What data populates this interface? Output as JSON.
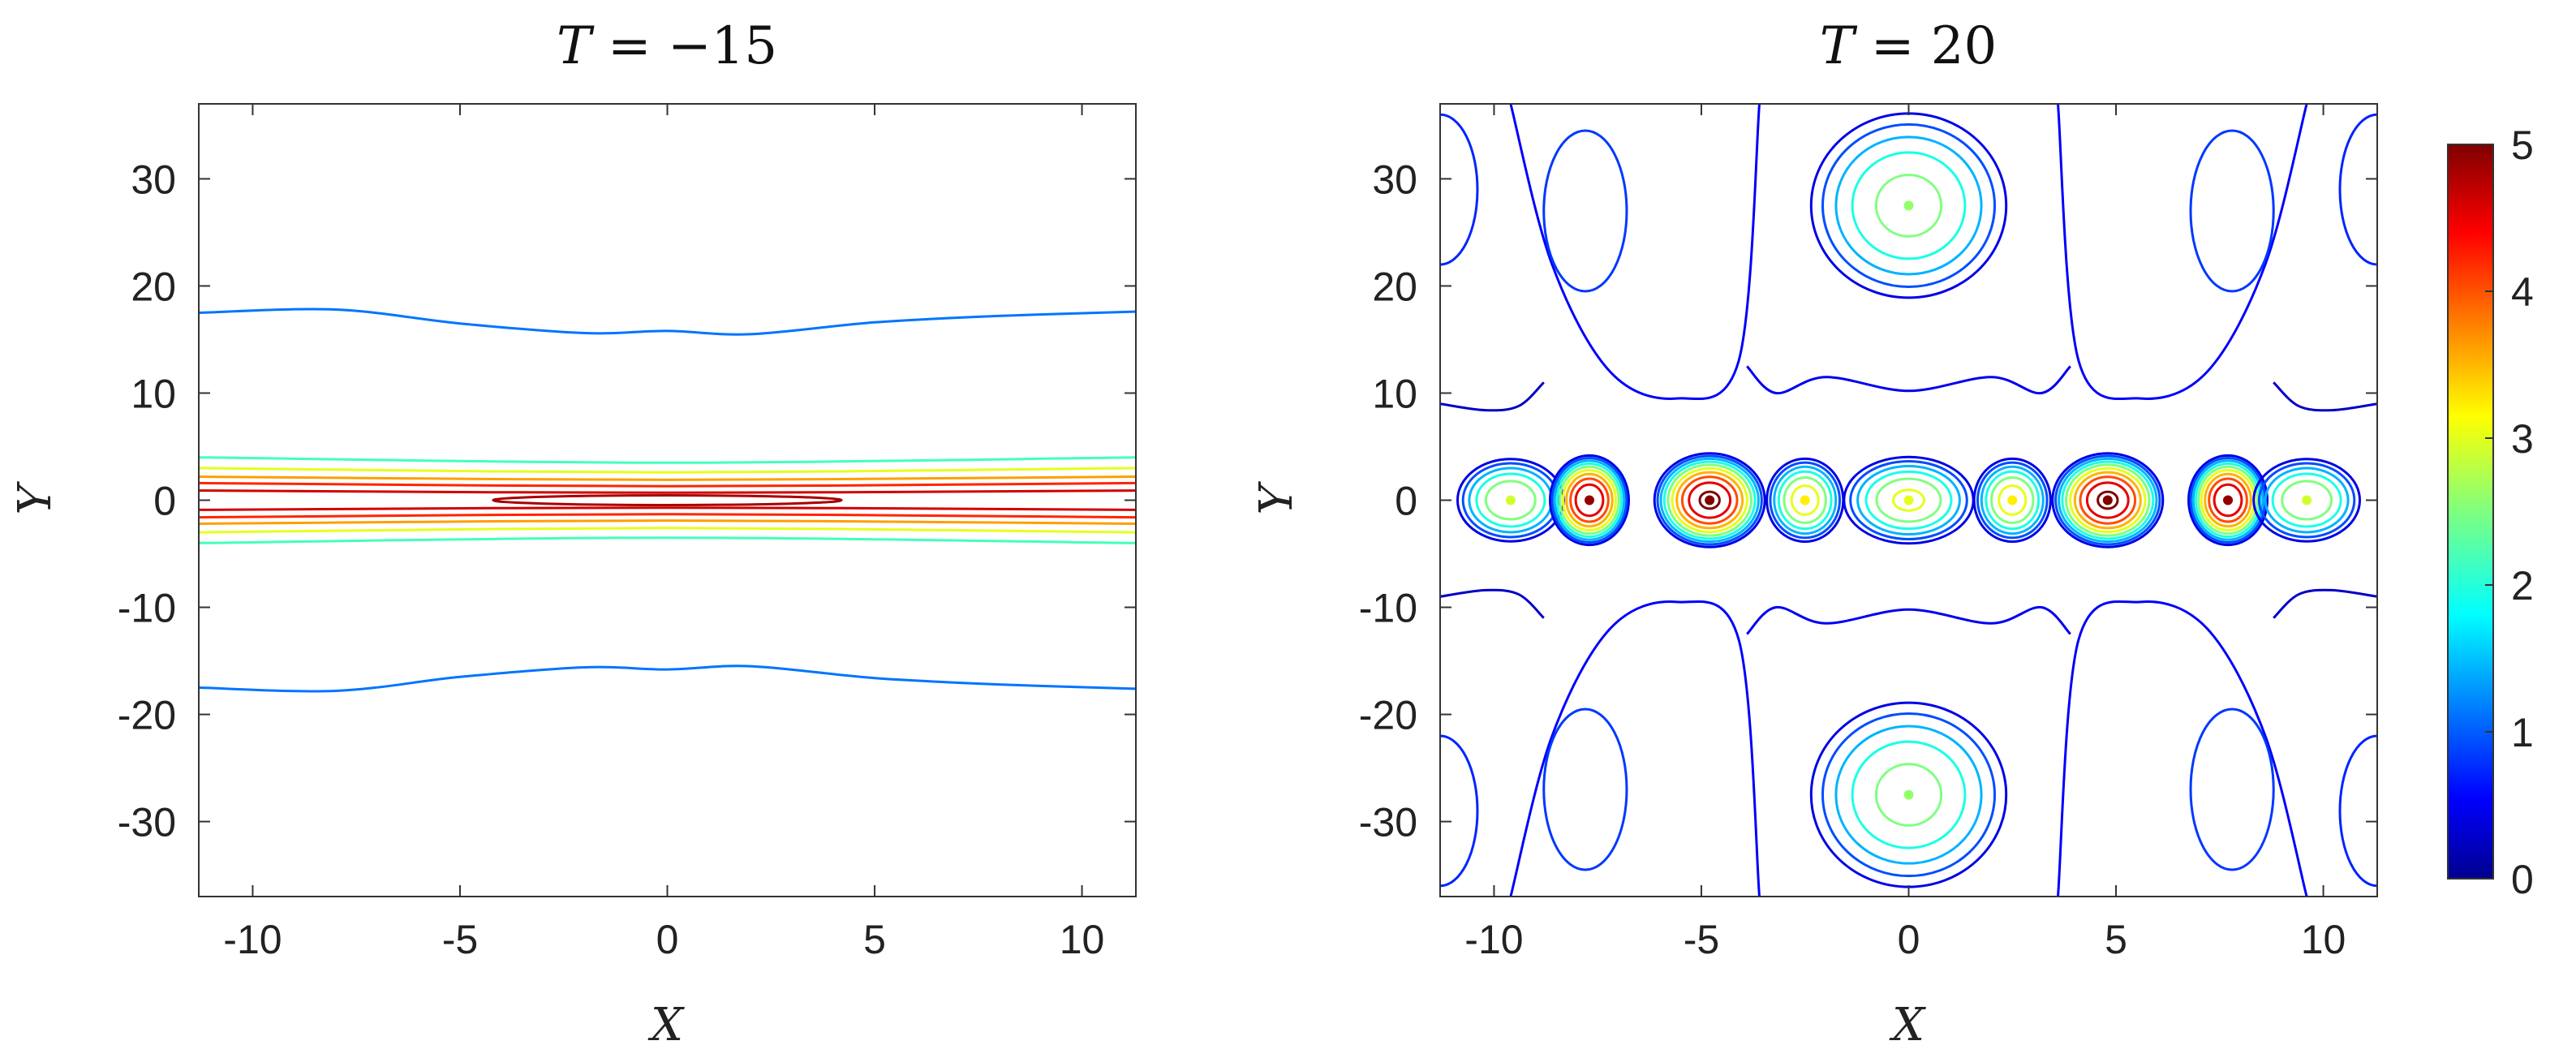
{
  "chart_data": [
    {
      "type": "contour",
      "title": "T = −15",
      "title_parts": {
        "var": "T",
        "rest": " = −15"
      },
      "xlabel": "X",
      "ylabel": "Y",
      "xlim": [
        -11.3,
        11.3
      ],
      "ylim": [
        -37,
        37
      ],
      "xticks": [
        -10,
        -5,
        0,
        5,
        10
      ],
      "xtick_labels": [
        "-10",
        "-5",
        "0",
        "5",
        "10"
      ],
      "yticks": [
        -30,
        -20,
        -10,
        0,
        10,
        20,
        30
      ],
      "ytick_labels": [
        "-30",
        "-20",
        "-10",
        "0",
        "10",
        "20",
        "30"
      ],
      "grid": false,
      "description": "Line soliton along Y=0: nested horizontal contour bands (red core up to ~4.8, fading through orange/yellow/cyan), with faint outer level-1 contours near Y=±16.5",
      "contour_lines": [
        {
          "level": 1.2,
          "x": [
            -11.3,
            -8,
            -5,
            -2,
            0,
            2,
            5,
            8,
            11.3
          ],
          "y": [
            17.5,
            17.8,
            16.5,
            15.6,
            15.8,
            15.5,
            16.6,
            17.2,
            17.6
          ]
        },
        {
          "level": 1.2,
          "x": [
            -11.3,
            -8,
            -5,
            -2,
            0,
            2,
            5,
            8,
            11.3
          ],
          "y": [
            -17.5,
            -17.8,
            -16.5,
            -15.6,
            -15.8,
            -15.5,
            -16.6,
            -17.2,
            -17.6
          ]
        },
        {
          "level": 2.2,
          "x": [
            -11.3,
            0,
            11.3
          ],
          "y": [
            4.0,
            3.5,
            4.0
          ]
        },
        {
          "level": 2.2,
          "x": [
            -11.3,
            0,
            11.3
          ],
          "y": [
            -4.0,
            -3.5,
            -4.0
          ]
        },
        {
          "level": 3.0,
          "x": [
            -11.3,
            0,
            11.3
          ],
          "y": [
            3.0,
            2.6,
            3.0
          ]
        },
        {
          "level": 3.0,
          "x": [
            -11.3,
            0,
            11.3
          ],
          "y": [
            -3.0,
            -2.6,
            -3.0
          ]
        },
        {
          "level": 3.6,
          "x": [
            -11.3,
            0,
            11.3
          ],
          "y": [
            2.2,
            1.9,
            2.2
          ]
        },
        {
          "level": 3.6,
          "x": [
            -11.3,
            0,
            11.3
          ],
          "y": [
            -2.2,
            -1.9,
            -2.2
          ]
        },
        {
          "level": 4.2,
          "x": [
            -11.3,
            0,
            11.3
          ],
          "y": [
            1.6,
            1.3,
            1.6
          ]
        },
        {
          "level": 4.2,
          "x": [
            -11.3,
            0,
            11.3
          ],
          "y": [
            -1.6,
            -1.3,
            -1.6
          ]
        },
        {
          "level": 4.6,
          "x": [
            -11.3,
            0,
            11.3
          ],
          "y": [
            0.9,
            0.7,
            0.9
          ]
        },
        {
          "level": 4.6,
          "x": [
            -11.3,
            0,
            11.3
          ],
          "y": [
            -0.9,
            -0.7,
            -0.9
          ]
        }
      ],
      "contour_loops": [
        {
          "level": 4.8,
          "cx": 0,
          "cy": 0,
          "rx": 4.2,
          "ry": 0.45
        }
      ]
    },
    {
      "type": "contour",
      "title": "T = 20",
      "title_parts": {
        "var": "T",
        "rest": " = 20"
      },
      "xlabel": "X",
      "ylabel": "Y",
      "xlim": [
        -11.3,
        11.3
      ],
      "ylim": [
        -37,
        37
      ],
      "xticks": [
        -10,
        -5,
        0,
        5,
        10
      ],
      "xtick_labels": [
        "-10",
        "-5",
        "0",
        "5",
        "10"
      ],
      "yticks": [
        -30,
        -20,
        -10,
        0,
        10,
        20,
        30
      ],
      "ytick_labels": [
        "-30",
        "-20",
        "-10",
        "0",
        "10",
        "20",
        "30"
      ],
      "grid": false,
      "description": "Interaction pattern: chain of peaks along Y=0 (red peaks near X=±4.8 and ±7.7, yellow/green peaks near X=0, ±2.5, ±9.6) plus secondary humps centred at (0, ±27.5); low-level blue contours form the surrounding lattice",
      "peaks": [
        {
          "x": -9.6,
          "y": 0,
          "level": 2.9,
          "rx": 1.4,
          "ry": 4.2
        },
        {
          "x": -7.7,
          "y": 0,
          "level": 4.9,
          "rx": 1.0,
          "ry": 4.4
        },
        {
          "x": -4.8,
          "y": 0,
          "level": 5.0,
          "rx": 1.4,
          "ry": 4.6
        },
        {
          "x": -2.5,
          "y": 0,
          "level": 3.2,
          "rx": 1.0,
          "ry": 4.2
        },
        {
          "x": 0.0,
          "y": 0,
          "level": 3.0,
          "rx": 1.7,
          "ry": 4.4
        },
        {
          "x": 2.5,
          "y": 0,
          "level": 3.2,
          "rx": 1.0,
          "ry": 4.2
        },
        {
          "x": 4.8,
          "y": 0,
          "level": 5.0,
          "rx": 1.4,
          "ry": 4.6
        },
        {
          "x": 7.7,
          "y": 0,
          "level": 4.9,
          "rx": 1.0,
          "ry": 4.4
        },
        {
          "x": 9.6,
          "y": 0,
          "level": 2.9,
          "rx": 1.4,
          "ry": 4.2
        },
        {
          "x": 0.0,
          "y": 27.5,
          "level": 2.6,
          "rx": 2.6,
          "ry": 9.5
        },
        {
          "x": 0.0,
          "y": -27.5,
          "level": 2.6,
          "rx": 2.6,
          "ry": 9.5
        }
      ],
      "background_loops": [
        {
          "level": 0.9,
          "cx": -7.8,
          "cy": 27,
          "rx": 1.0,
          "ry": 7.5
        },
        {
          "level": 0.9,
          "cx": 7.8,
          "cy": 27,
          "rx": 1.0,
          "ry": 7.5
        },
        {
          "level": 0.9,
          "cx": -7.8,
          "cy": -27,
          "rx": 1.0,
          "ry": 7.5
        },
        {
          "level": 0.9,
          "cx": 7.8,
          "cy": -27,
          "rx": 1.0,
          "ry": 7.5
        },
        {
          "level": 0.8,
          "cx": -11.3,
          "cy": 29,
          "rx": 0.9,
          "ry": 7.0
        },
        {
          "level": 0.8,
          "cx": 11.3,
          "cy": 29,
          "rx": 0.9,
          "ry": 7.0
        },
        {
          "level": 0.8,
          "cx": -11.3,
          "cy": -29,
          "rx": 0.9,
          "ry": 7.0
        },
        {
          "level": 0.8,
          "cx": 11.3,
          "cy": -29,
          "rx": 0.9,
          "ry": 7.0
        }
      ],
      "background_curves": [
        {
          "level": 0.6,
          "x": [
            -9.6,
            -8.6,
            -7.2,
            -5.6,
            -4.1,
            -3.6
          ],
          "y": [
            37,
            22,
            12,
            9.5,
            13,
            37
          ]
        },
        {
          "level": 0.6,
          "x": [
            3.6,
            4.1,
            5.6,
            7.2,
            8.6,
            9.6
          ],
          "y": [
            37,
            13,
            9.5,
            12,
            22,
            37
          ]
        },
        {
          "level": 0.6,
          "x": [
            -9.6,
            -8.6,
            -7.2,
            -5.6,
            -4.1,
            -3.6
          ],
          "y": [
            -37,
            -22,
            -12,
            -9.5,
            -13,
            -37
          ]
        },
        {
          "level": 0.6,
          "x": [
            3.6,
            4.1,
            5.6,
            7.2,
            8.6,
            9.6
          ],
          "y": [
            -37,
            -13,
            -9.5,
            -12,
            -22,
            -37
          ]
        },
        {
          "level": 0.55,
          "x": [
            -3.9,
            -3.2,
            -2.0,
            0,
            2.0,
            3.2,
            3.9
          ],
          "y": [
            12.5,
            10,
            11.5,
            10.2,
            11.5,
            10,
            12.5
          ]
        },
        {
          "level": 0.55,
          "x": [
            -3.9,
            -3.2,
            -2.0,
            0,
            2.0,
            3.2,
            3.9
          ],
          "y": [
            -12.5,
            -10,
            -11.5,
            -10.2,
            -11.5,
            -10,
            -12.5
          ]
        },
        {
          "level": 0.35,
          "x": [
            -11.3,
            -10.2,
            -9.4,
            -8.8
          ],
          "y": [
            9,
            8.4,
            8.8,
            11
          ]
        },
        {
          "level": 0.35,
          "x": [
            8.8,
            9.4,
            10.2,
            11.3
          ],
          "y": [
            11,
            8.8,
            8.4,
            9
          ]
        },
        {
          "level": 0.35,
          "x": [
            -11.3,
            -10.2,
            -9.4,
            -8.8
          ],
          "y": [
            -9,
            -8.4,
            -8.8,
            -11
          ]
        },
        {
          "level": 0.35,
          "x": [
            8.8,
            9.4,
            10.2,
            11.3
          ],
          "y": [
            -11,
            -8.8,
            -8.4,
            -9
          ]
        }
      ]
    }
  ],
  "colorbar": {
    "colormap": "jet",
    "min": 0,
    "max": 5,
    "ticks": [
      0,
      1,
      2,
      3,
      4,
      5
    ],
    "tick_labels": [
      "0",
      "1",
      "2",
      "3",
      "4",
      "5"
    ]
  }
}
